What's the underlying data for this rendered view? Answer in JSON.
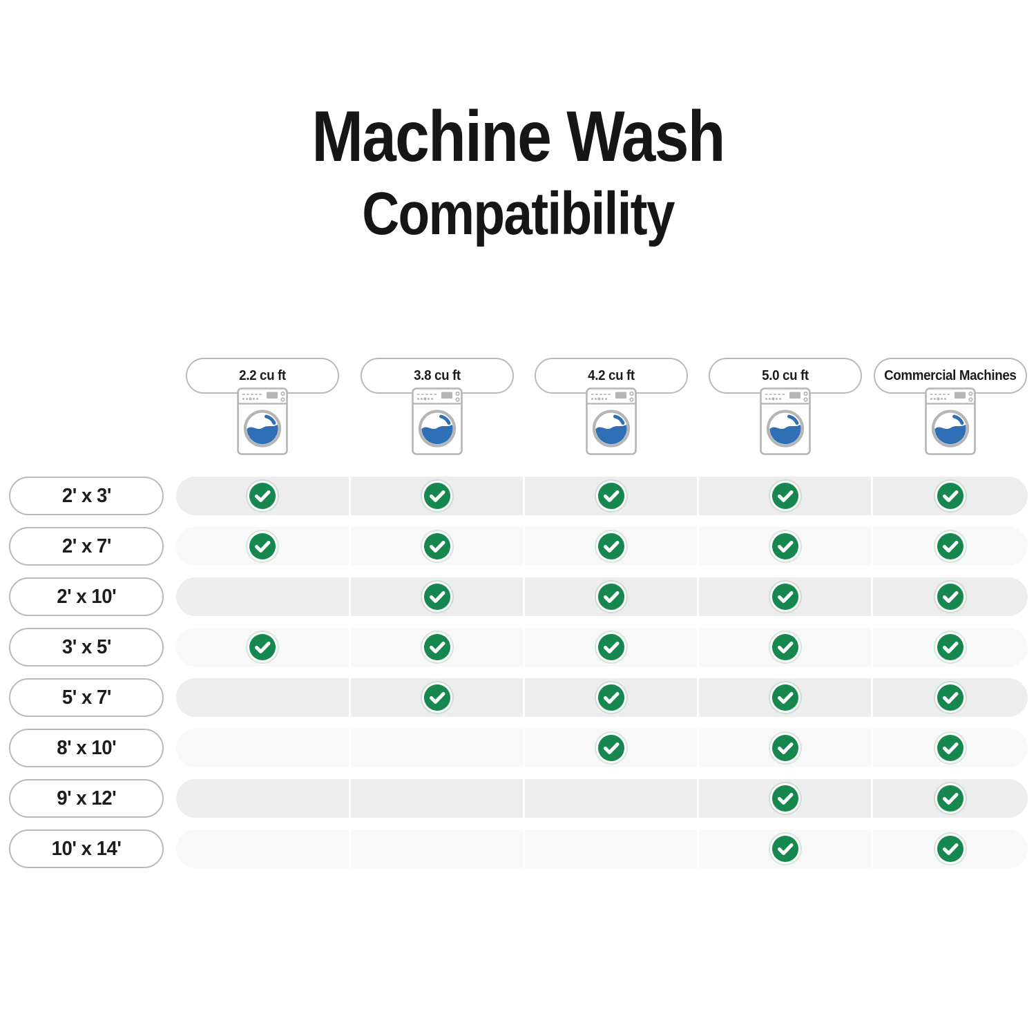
{
  "title": {
    "line1": "Machine Wash",
    "line2": "Compatibility"
  },
  "chart_data": {
    "type": "table",
    "title": "Machine Wash Compatibility",
    "columns": [
      "2.2 cu ft",
      "3.8 cu ft",
      "4.2 cu ft",
      "5.0 cu ft",
      "Commercial Machines"
    ],
    "rows": [
      "2' x 3'",
      "2' x 7'",
      "2' x 10'",
      "3' x 5'",
      "5' x 7'",
      "8' x 10'",
      "9' x 12'",
      "10' x 14'"
    ],
    "matrix": [
      [
        1,
        1,
        1,
        1,
        1
      ],
      [
        1,
        1,
        1,
        1,
        1
      ],
      [
        0,
        1,
        1,
        1,
        1
      ],
      [
        1,
        1,
        1,
        1,
        1
      ],
      [
        0,
        1,
        1,
        1,
        1
      ],
      [
        0,
        0,
        1,
        1,
        1
      ],
      [
        0,
        0,
        0,
        1,
        1
      ],
      [
        0,
        0,
        0,
        1,
        1
      ]
    ],
    "cell_true_symbol": "green-check-circle",
    "cell_false_symbol": "blank"
  },
  "icons": {
    "column_icon": "washing-machine-icon",
    "check_icon": "check-icon"
  },
  "colors": {
    "check_green": "#16874E",
    "water_blue": "#2E6FB5",
    "machine_gray": "#B5B5B5",
    "pill_border": "#B9B9B9",
    "band_odd": "#EDEDED",
    "band_even": "#F8F8F8",
    "ink": "#161616"
  }
}
